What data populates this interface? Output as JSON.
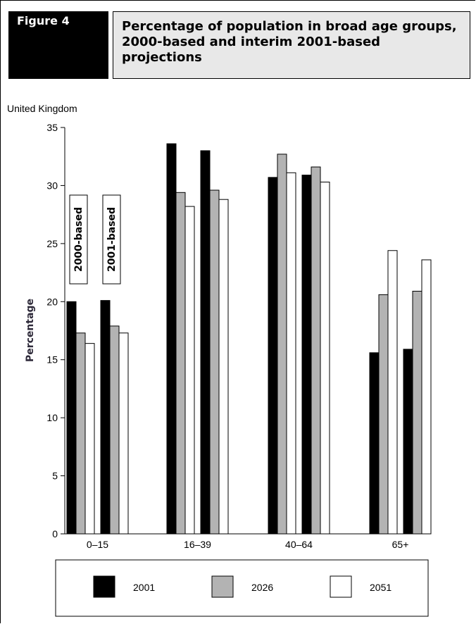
{
  "figure_label": "Figure 4",
  "title": "Percentage of population in broad age groups, 2000-based and interim 2001-based projections",
  "subtitle": "United Kingdom",
  "chart_data": {
    "type": "bar",
    "ylabel": "Percentage",
    "xlabel": "",
    "ylim": [
      0,
      35
    ],
    "yticks": [
      0,
      5,
      10,
      15,
      20,
      25,
      30,
      35
    ],
    "categories": [
      "0–15",
      "16–39",
      "40–64",
      "65+"
    ],
    "groups": [
      "2000-based",
      "2001-based"
    ],
    "group_labels_shown_for_category": "0–15",
    "series": [
      {
        "name": "2001",
        "color": "#000000",
        "values_2000_based": [
          20.0,
          33.6,
          30.7,
          15.6
        ],
        "values_2001_based": [
          20.1,
          33.0,
          30.9,
          15.9
        ]
      },
      {
        "name": "2026",
        "color": "#b3b3b3",
        "values_2000_based": [
          17.3,
          29.4,
          32.7,
          20.6
        ],
        "values_2001_based": [
          17.9,
          29.6,
          31.6,
          20.9
        ]
      },
      {
        "name": "2051",
        "color": "#ffffff",
        "values_2000_based": [
          16.4,
          28.2,
          31.1,
          24.4
        ],
        "values_2001_based": [
          17.3,
          28.8,
          30.3,
          23.6
        ]
      }
    ],
    "legend": [
      "2001",
      "2026",
      "2051"
    ],
    "legend_position": "bottom",
    "grid": false
  }
}
